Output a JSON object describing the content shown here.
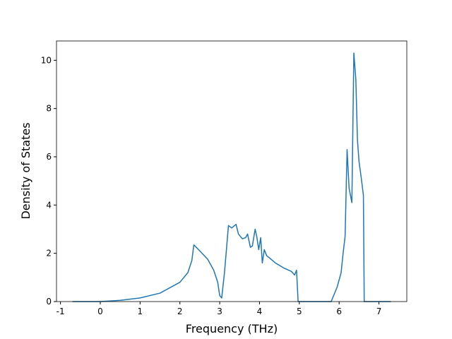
{
  "chart_data": {
    "type": "line",
    "x_label": "Frequency (THz)",
    "y_label": "Density of States",
    "xlim": [
      -1.1,
      7.7
    ],
    "ylim": [
      0,
      10.8
    ],
    "xticks": [
      -1,
      0,
      1,
      2,
      3,
      4,
      5,
      6,
      7
    ],
    "yticks": [
      0,
      2,
      4,
      6,
      8,
      10
    ],
    "grid": false,
    "series": [
      {
        "color": "#1f77b4",
        "x": [
          -0.7,
          0,
          0.5,
          1,
          1.5,
          2,
          2.2,
          2.3,
          2.35,
          2.5,
          2.7,
          2.85,
          2.95,
          3.0,
          3.05,
          3.12,
          3.22,
          3.3,
          3.41,
          3.47,
          3.57,
          3.65,
          3.7,
          3.77,
          3.82,
          3.89,
          3.93,
          3.98,
          4.03,
          4.07,
          4.12,
          4.18,
          4.22,
          4.4,
          4.6,
          4.8,
          4.88,
          4.93,
          4.97,
          5.8,
          5.95,
          6.05,
          6.1,
          6.15,
          6.2,
          6.25,
          6.32,
          6.37,
          6.42,
          6.46,
          6.5,
          6.55,
          6.61,
          6.63,
          7.3
        ],
        "values": [
          0,
          0,
          0.05,
          0.15,
          0.35,
          0.8,
          1.2,
          1.7,
          2.35,
          2.1,
          1.75,
          1.3,
          0.8,
          0.25,
          0.15,
          1.2,
          3.15,
          3.05,
          3.2,
          2.8,
          2.6,
          2.65,
          2.8,
          2.25,
          2.3,
          3.0,
          2.7,
          2.15,
          2.65,
          1.6,
          2.15,
          1.9,
          1.85,
          1.6,
          1.4,
          1.25,
          1.1,
          1.3,
          0,
          0,
          0.6,
          1.2,
          2.0,
          2.7,
          6.3,
          4.7,
          4.1,
          10.3,
          9.2,
          6.7,
          5.8,
          5.2,
          4.4,
          0,
          0
        ]
      }
    ]
  }
}
